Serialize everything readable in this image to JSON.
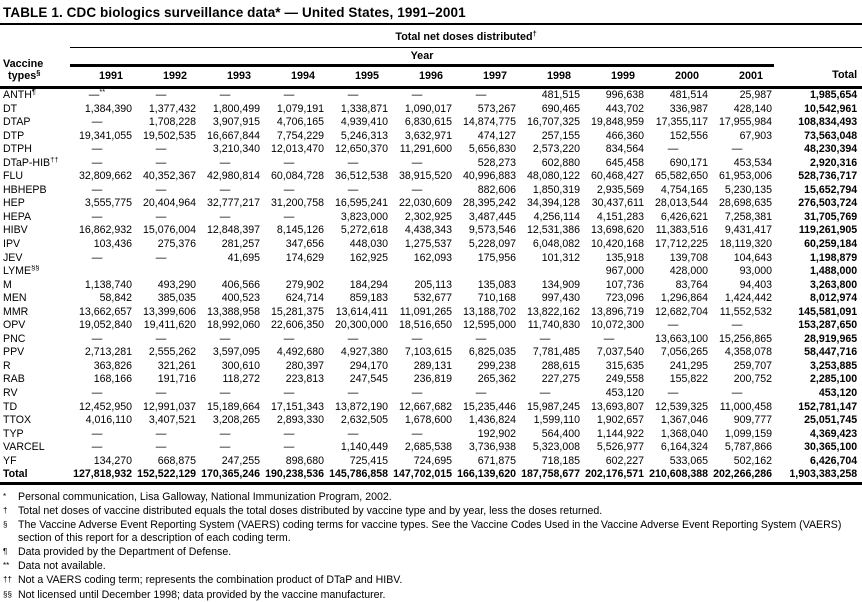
{
  "title": "TABLE 1. CDC biologics surveillance data* — United States, 1991–2001",
  "table": {
    "header": {
      "vaccine_line1": "Vaccine",
      "vaccine_line2": "types",
      "vaccine_sup": "§",
      "spanner": "Total net doses distributed",
      "spanner_sup": "†",
      "year_label": "Year",
      "years": [
        "1991",
        "1992",
        "1993",
        "1994",
        "1995",
        "1996",
        "1997",
        "1998",
        "1999",
        "2000",
        "2001"
      ],
      "total_label": "Total"
    },
    "rows": [
      {
        "name": "ANTH",
        "sup": "¶",
        "values": [
          "—**",
          "—",
          "—",
          "—",
          "—",
          "—",
          "—",
          "481,515",
          "996,638",
          "481,514",
          "25,987"
        ],
        "total": "1,985,654"
      },
      {
        "name": "DT",
        "sup": "",
        "values": [
          "1,384,390",
          "1,377,432",
          "1,800,499",
          "1,079,191",
          "1,338,871",
          "1,090,017",
          "573,267",
          "690,465",
          "443,702",
          "336,987",
          "428,140"
        ],
        "total": "10,542,961"
      },
      {
        "name": "DTAP",
        "sup": "",
        "values": [
          "—",
          "1,708,228",
          "3,907,915",
          "4,706,165",
          "4,939,410",
          "6,830,615",
          "14,874,775",
          "16,707,325",
          "19,848,959",
          "17,355,117",
          "17,955,984"
        ],
        "total": "108,834,493"
      },
      {
        "name": "DTP",
        "sup": "",
        "values": [
          "19,341,055",
          "19,502,535",
          "16,667,844",
          "7,754,229",
          "5,246,313",
          "3,632,971",
          "474,127",
          "257,155",
          "466,360",
          "152,556",
          "67,903"
        ],
        "total": "73,563,048"
      },
      {
        "name": "DTPH",
        "sup": "",
        "values": [
          "—",
          "—",
          "3,210,340",
          "12,013,470",
          "12,650,370",
          "11,291,600",
          "5,656,830",
          "2,573,220",
          "834,564",
          "—",
          "—"
        ],
        "total": "48,230,394"
      },
      {
        "name": "DTaP-HIB",
        "sup": "††",
        "values": [
          "—",
          "—",
          "—",
          "—",
          "—",
          "—",
          "528,273",
          "602,880",
          "645,458",
          "690,171",
          "453,534"
        ],
        "total": "2,920,316"
      },
      {
        "name": "FLU",
        "sup": "",
        "values": [
          "32,809,662",
          "40,352,367",
          "42,980,814",
          "60,084,728",
          "36,512,538",
          "38,915,520",
          "40,996,883",
          "48,080,122",
          "60,468,427",
          "65,582,650",
          "61,953,006"
        ],
        "total": "528,736,717"
      },
      {
        "name": "HBHEPB",
        "sup": "",
        "values": [
          "—",
          "—",
          "—",
          "—",
          "—",
          "—",
          "882,606",
          "1,850,319",
          "2,935,569",
          "4,754,165",
          "5,230,135"
        ],
        "total": "15,652,794"
      },
      {
        "name": "HEP",
        "sup": "",
        "values": [
          "3,555,775",
          "20,404,964",
          "32,777,217",
          "31,200,758",
          "16,595,241",
          "22,030,609",
          "28,395,242",
          "34,394,128",
          "30,437,611",
          "28,013,544",
          "28,698,635"
        ],
        "total": "276,503,724"
      },
      {
        "name": "HEPA",
        "sup": "",
        "values": [
          "—",
          "—",
          "—",
          "—",
          "3,823,000",
          "2,302,925",
          "3,487,445",
          "4,256,114",
          "4,151,283",
          "6,426,621",
          "7,258,381"
        ],
        "total": "31,705,769"
      },
      {
        "name": "HIBV",
        "sup": "",
        "values": [
          "16,862,932",
          "15,076,004",
          "12,848,397",
          "8,145,126",
          "5,272,618",
          "4,438,343",
          "9,573,546",
          "12,531,386",
          "13,698,620",
          "11,383,516",
          "9,431,417"
        ],
        "total": "119,261,905"
      },
      {
        "name": "IPV",
        "sup": "",
        "values": [
          "103,436",
          "275,376",
          "281,257",
          "347,656",
          "448,030",
          "1,275,537",
          "5,228,097",
          "6,048,082",
          "10,420,168",
          "17,712,225",
          "18,119,320"
        ],
        "total": "60,259,184"
      },
      {
        "name": "JEV",
        "sup": "",
        "values": [
          "—",
          "—",
          "41,695",
          "174,629",
          "162,925",
          "162,093",
          "175,956",
          "101,312",
          "135,918",
          "139,708",
          "104,643"
        ],
        "total": "1,198,879"
      },
      {
        "name": "LYME",
        "sup": "§§",
        "values": [
          "",
          "",
          "",
          "",
          "",
          "",
          "",
          "",
          "967,000",
          "428,000",
          "93,000"
        ],
        "total": "1,488,000"
      },
      {
        "name": "M",
        "sup": "",
        "values": [
          "1,138,740",
          "493,290",
          "406,566",
          "279,902",
          "184,294",
          "205,113",
          "135,083",
          "134,909",
          "107,736",
          "83,764",
          "94,403"
        ],
        "total": "3,263,800"
      },
      {
        "name": "MEN",
        "sup": "",
        "values": [
          "58,842",
          "385,035",
          "400,523",
          "624,714",
          "859,183",
          "532,677",
          "710,168",
          "997,430",
          "723,096",
          "1,296,864",
          "1,424,442"
        ],
        "total": "8,012,974"
      },
      {
        "name": "MMR",
        "sup": "",
        "values": [
          "13,662,657",
          "13,399,606",
          "13,388,958",
          "15,281,375",
          "13,614,411",
          "11,091,265",
          "13,188,702",
          "13,822,162",
          "13,896,719",
          "12,682,704",
          "11,552,532"
        ],
        "total": "145,581,091"
      },
      {
        "name": "OPV",
        "sup": "",
        "values": [
          "19,052,840",
          "19,411,620",
          "18,992,060",
          "22,606,350",
          "20,300,000",
          "18,516,650",
          "12,595,000",
          "11,740,830",
          "10,072,300",
          "—",
          "—"
        ],
        "total": "153,287,650"
      },
      {
        "name": "PNC",
        "sup": "",
        "values": [
          "—",
          "—",
          "—",
          "—",
          "—",
          "—",
          "—",
          "—",
          "—",
          "13,663,100",
          "15,256,865"
        ],
        "total": "28,919,965"
      },
      {
        "name": "PPV",
        "sup": "",
        "values": [
          "2,713,281",
          "2,555,262",
          "3,597,095",
          "4,492,680",
          "4,927,380",
          "7,103,615",
          "6,825,035",
          "7,781,485",
          "7,037,540",
          "7,056,265",
          "4,358,078"
        ],
        "total": "58,447,716"
      },
      {
        "name": "R",
        "sup": "",
        "values": [
          "363,826",
          "321,261",
          "300,610",
          "280,397",
          "294,170",
          "289,131",
          "299,238",
          "288,615",
          "315,635",
          "241,295",
          "259,707"
        ],
        "total": "3,253,885"
      },
      {
        "name": "RAB",
        "sup": "",
        "values": [
          "168,166",
          "191,716",
          "118,272",
          "223,813",
          "247,545",
          "236,819",
          "265,362",
          "227,275",
          "249,558",
          "155,822",
          "200,752"
        ],
        "total": "2,285,100"
      },
      {
        "name": "RV",
        "sup": "",
        "values": [
          "—",
          "—",
          "—",
          "—",
          "—",
          "—",
          "—",
          "—",
          "453,120",
          "—",
          "—"
        ],
        "total": "453,120"
      },
      {
        "name": "TD",
        "sup": "",
        "values": [
          "12,452,950",
          "12,991,037",
          "15,189,664",
          "17,151,343",
          "13,872,190",
          "12,667,682",
          "15,235,446",
          "15,987,245",
          "13,693,807",
          "12,539,325",
          "11,000,458"
        ],
        "total": "152,781,147"
      },
      {
        "name": "TTOX",
        "sup": "",
        "values": [
          "4,016,110",
          "3,407,521",
          "3,208,265",
          "2,893,330",
          "2,632,505",
          "1,678,600",
          "1,436,824",
          "1,599,110",
          "1,902,657",
          "1,367,046",
          "909,777"
        ],
        "total": "25,051,745"
      },
      {
        "name": "TYP",
        "sup": "",
        "values": [
          "—",
          "—",
          "—",
          "—",
          "—",
          "—",
          "192,902",
          "564,400",
          "1,144,922",
          "1,368,040",
          "1,099,159"
        ],
        "total": "4,369,423"
      },
      {
        "name": "VARCEL",
        "sup": "",
        "values": [
          "—",
          "—",
          "—",
          "—",
          "1,140,449",
          "2,685,538",
          "3,736,938",
          "5,323,008",
          "5,526,977",
          "6,164,324",
          "5,787,866"
        ],
        "total": "30,365,100"
      },
      {
        "name": "YF",
        "sup": "",
        "values": [
          "134,270",
          "668,875",
          "247,255",
          "898,680",
          "725,415",
          "724,695",
          "671,875",
          "718,185",
          "602,227",
          "533,065",
          "502,162"
        ],
        "total": "6,426,704"
      },
      {
        "name": "Total",
        "sup": "",
        "is_total": true,
        "values": [
          "127,818,932",
          "152,522,129",
          "170,365,246",
          "190,238,536",
          "145,786,858",
          "147,702,015",
          "166,139,620",
          "187,758,677",
          "202,176,571",
          "210,608,388",
          "202,266,286"
        ],
        "total": "1,903,383,258"
      }
    ]
  },
  "footnotes": [
    {
      "marker": "*",
      "text": "Personal communication, Lisa Galloway, National Immunization Program, 2002."
    },
    {
      "marker": "†",
      "text": "Total net doses of vaccine distributed equals the total doses distributed by vaccine type and by year, less the doses returned."
    },
    {
      "marker": "§",
      "text": "The Vaccine Adverse Event Reporting System (VAERS) coding terms for vaccine types. See the Vaccine Codes Used in the Vaccine Adverse Event Reporting System (VAERS) section of this report for a description of each coding term."
    },
    {
      "marker": "¶",
      "text": "Data provided by the Department of Defense."
    },
    {
      "marker": "**",
      "text": "Data not available."
    },
    {
      "marker": "††",
      "text": "Not a VAERS coding term; represents the combination product of DTaP and HIBV."
    },
    {
      "marker": "§§",
      "text": "Not licensed until December 1998; data provided by the vaccine manufacturer."
    }
  ]
}
